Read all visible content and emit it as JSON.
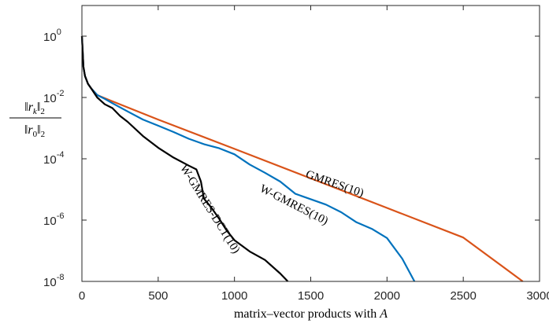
{
  "chart_data": {
    "type": "line",
    "title": "",
    "xlabel": "matrix–vector products with A",
    "xlabel_parts": {
      "text": "matrix–vector products with ",
      "var": "A"
    },
    "ylabel": "‖r_k‖_2 / ‖r_0‖_2",
    "ylabel_parts": {
      "num_var": "r",
      "num_sub": "k",
      "num_norm_sub": "2",
      "den_var": "r",
      "den_sub": "0",
      "den_norm_sub": "2"
    },
    "xlim": [
      0,
      3000
    ],
    "ylim": [
      1e-08,
      10
    ],
    "yscale": "log",
    "grid": false,
    "legend": "none",
    "x_ticks": [
      {
        "value": 0,
        "label": "0"
      },
      {
        "value": 500,
        "label": "500"
      },
      {
        "value": 1000,
        "label": "1000"
      },
      {
        "value": 1500,
        "label": "1500"
      },
      {
        "value": 2000,
        "label": "2000"
      },
      {
        "value": 2500,
        "label": "2500"
      },
      {
        "value": 3000,
        "label": "3000"
      }
    ],
    "y_ticks": [
      {
        "value": 1,
        "base": "10",
        "exp": "0"
      },
      {
        "value": 0.01,
        "base": "10",
        "exp": "-2"
      },
      {
        "value": 0.0001,
        "base": "10",
        "exp": "-4"
      },
      {
        "value": 1e-06,
        "base": "10",
        "exp": "-6"
      },
      {
        "value": 1e-08,
        "base": "10",
        "exp": "-8"
      }
    ],
    "series": [
      {
        "name": "GMRES(10)",
        "color": "#d95319",
        "label_at": [
          1650,
          1.2e-05
        ],
        "label_angle": 19,
        "points": [
          [
            0,
            1.0
          ],
          [
            5,
            0.3
          ],
          [
            10,
            0.1
          ],
          [
            20,
            0.05
          ],
          [
            40,
            0.028
          ],
          [
            60,
            0.02
          ],
          [
            100,
            0.012
          ],
          [
            200,
            0.0075
          ],
          [
            500,
            0.0019
          ],
          [
            1000,
            0.00021
          ],
          [
            1500,
            2.3e-05
          ],
          [
            2000,
            2.5e-06
          ],
          [
            2500,
            2.7e-07
          ],
          [
            2890,
            1e-08
          ]
        ]
      },
      {
        "name": "W-GMRES(10)",
        "color": "#0072bd",
        "label_at": [
          1380,
          2.5e-06
        ],
        "label_angle": 27,
        "points": [
          [
            0,
            1.0
          ],
          [
            5,
            0.3
          ],
          [
            10,
            0.1
          ],
          [
            20,
            0.05
          ],
          [
            40,
            0.028
          ],
          [
            60,
            0.02
          ],
          [
            100,
            0.012
          ],
          [
            150,
            0.009
          ],
          [
            200,
            0.0065
          ],
          [
            300,
            0.0035
          ],
          [
            400,
            0.0019
          ],
          [
            500,
            0.0012
          ],
          [
            600,
            0.00075
          ],
          [
            700,
            0.00045
          ],
          [
            800,
            0.0003
          ],
          [
            900,
            0.00022
          ],
          [
            1000,
            0.00014
          ],
          [
            1100,
            6.5e-05
          ],
          [
            1200,
            3.5e-05
          ],
          [
            1300,
            1.8e-05
          ],
          [
            1400,
            7.2e-06
          ],
          [
            1500,
            4.8e-06
          ],
          [
            1600,
            3.2e-06
          ],
          [
            1700,
            1.8e-06
          ],
          [
            1800,
            8.5e-07
          ],
          [
            1900,
            5.2e-07
          ],
          [
            2000,
            2.6e-07
          ],
          [
            2100,
            5.5e-08
          ],
          [
            2180,
            1e-08
          ]
        ]
      },
      {
        "name": "W-GMRES-DCT(10)",
        "color": "#000000",
        "label_at": [
          820,
          2e-06
        ],
        "label_angle": 58,
        "points": [
          [
            0,
            1.0
          ],
          [
            5,
            0.3
          ],
          [
            10,
            0.1
          ],
          [
            20,
            0.05
          ],
          [
            40,
            0.028
          ],
          [
            60,
            0.02
          ],
          [
            100,
            0.01
          ],
          [
            150,
            0.006
          ],
          [
            200,
            0.0045
          ],
          [
            250,
            0.0025
          ],
          [
            300,
            0.0016
          ],
          [
            400,
            0.00055
          ],
          [
            500,
            0.00023
          ],
          [
            600,
            0.00011
          ],
          [
            700,
            6e-05
          ],
          [
            750,
            4.5e-05
          ],
          [
            780,
            1.8e-05
          ],
          [
            800,
            5e-06
          ],
          [
            850,
            2.5e-06
          ],
          [
            900,
            1.1e-06
          ],
          [
            950,
            4.5e-07
          ],
          [
            1000,
            2.2e-07
          ],
          [
            1100,
            9.5e-08
          ],
          [
            1200,
            5e-08
          ],
          [
            1300,
            1.8e-08
          ],
          [
            1350,
            1e-08
          ]
        ]
      }
    ]
  }
}
